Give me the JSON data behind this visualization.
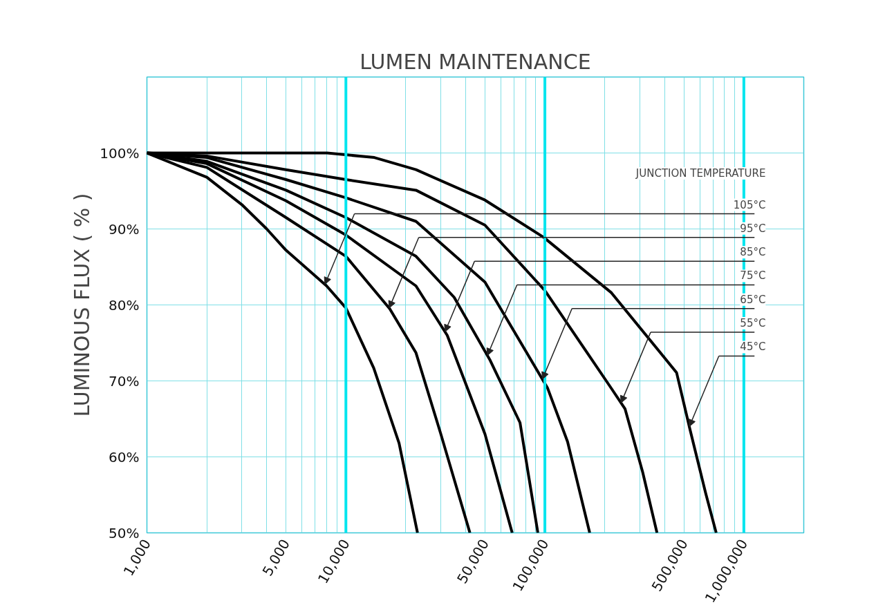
{
  "chart_data": {
    "type": "line",
    "title": "LUMEN MAINTENANCE",
    "ylabel": "LUMINOUS FLUX ( % )",
    "legend_title": "JUNCTION TEMPERATURE",
    "log": "x",
    "grid": true,
    "marker": "none",
    "line_style": "solid",
    "xlim": [
      1000,
      2000000
    ],
    "ylim": [
      50,
      110
    ],
    "xticks": [
      {
        "value": 1000,
        "label": "1,000"
      },
      {
        "value": 2000,
        "label": null
      },
      {
        "value": 3000,
        "label": null
      },
      {
        "value": 4000,
        "label": null
      },
      {
        "value": 5000,
        "label": "5,000"
      },
      {
        "value": 6000,
        "label": null
      },
      {
        "value": 7000,
        "label": null
      },
      {
        "value": 8000,
        "label": null
      },
      {
        "value": 9000,
        "label": null
      },
      {
        "value": 10000,
        "label": "10,000"
      },
      {
        "value": 20000,
        "label": null
      },
      {
        "value": 30000,
        "label": null
      },
      {
        "value": 40000,
        "label": null
      },
      {
        "value": 50000,
        "label": "50,000"
      },
      {
        "value": 60000,
        "label": null
      },
      {
        "value": 70000,
        "label": null
      },
      {
        "value": 80000,
        "label": null
      },
      {
        "value": 90000,
        "label": null
      },
      {
        "value": 100000,
        "label": "100,000"
      },
      {
        "value": 200000,
        "label": null
      },
      {
        "value": 300000,
        "label": null
      },
      {
        "value": 400000,
        "label": null
      },
      {
        "value": 500000,
        "label": "500,000"
      },
      {
        "value": 600000,
        "label": null
      },
      {
        "value": 700000,
        "label": null
      },
      {
        "value": 800000,
        "label": null
      },
      {
        "value": 900000,
        "label": null
      },
      {
        "value": 1000000,
        "label": "1,000,000"
      }
    ],
    "yticks": [
      {
        "value": 50,
        "label": "50%"
      },
      {
        "value": 60,
        "label": "60%"
      },
      {
        "value": 70,
        "label": "70%"
      },
      {
        "value": 80,
        "label": "80%"
      },
      {
        "value": 90,
        "label": "90%"
      },
      {
        "value": 100,
        "label": "100%"
      }
    ],
    "series": [
      {
        "color": "#000000",
        "x": [
          1000,
          2000,
          3000,
          4000,
          5000,
          8000,
          10000,
          13800,
          18500,
          22900
        ],
        "values": [
          100,
          96.8,
          93.2,
          90,
          87.2,
          82.5,
          79.6,
          71.7,
          61.8,
          50
        ]
      },
      {
        "color": "#000000",
        "x": [
          1000,
          2000,
          5000,
          10000,
          16600,
          22500,
          30000,
          42000
        ],
        "values": [
          100,
          98.1,
          91.5,
          86.4,
          79.5,
          73.7,
          63,
          50
        ]
      },
      {
        "color": "#000000",
        "x": [
          1000,
          2000,
          5000,
          10000,
          22500,
          32300,
          50000,
          68500
        ],
        "values": [
          100,
          98.6,
          93.7,
          89.2,
          82.5,
          76,
          63,
          50
        ]
      },
      {
        "color": "#000000",
        "x": [
          1000,
          2000,
          5000,
          10000,
          22500,
          35000,
          53100,
          75000,
          92200
        ],
        "values": [
          100,
          98.9,
          95.1,
          91.5,
          86.4,
          81,
          72.7,
          64.5,
          50
        ]
      },
      {
        "color": "#000000",
        "x": [
          1000,
          2000,
          5000,
          10000,
          22500,
          50000,
          103000,
          130000,
          168000
        ],
        "values": [
          100,
          99.4,
          96.5,
          94.1,
          91,
          83,
          69.1,
          62,
          50
        ]
      },
      {
        "color": "#000000",
        "x": [
          1000,
          2000,
          5000,
          10000,
          22500,
          50000,
          100000,
          216000,
          253000,
          310000,
          366000
        ],
        "values": [
          100,
          99.6,
          97.8,
          96.5,
          95.1,
          90.5,
          81.9,
          69,
          66.3,
          58,
          50
        ]
      },
      {
        "color": "#000000",
        "x": [
          1000,
          8050,
          13900,
          22500,
          50000,
          98600,
          216000,
          459000,
          535000,
          643000,
          726000
        ],
        "values": [
          100,
          100,
          99.4,
          97.8,
          93.8,
          88.9,
          81.6,
          71.1,
          63.7,
          55.2,
          50
        ]
      }
    ],
    "annotations": [
      "105°C",
      "95°C",
      "85°C",
      "75°C",
      "65°C",
      "55°C",
      "45°C"
    ]
  }
}
